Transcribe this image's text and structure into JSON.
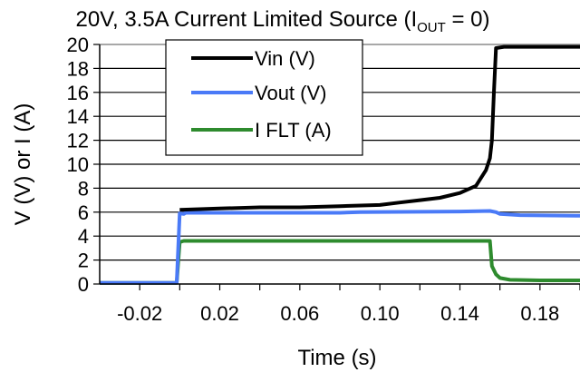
{
  "chart_data": {
    "type": "line",
    "title_parts": {
      "main": "20V, 3.5A Current Limited Source (I",
      "sub": "OUT",
      "tail": " = 0)"
    },
    "xlabel": "Time (s)",
    "ylabel": "V (V) or I (A)",
    "xlim": [
      -0.04,
      0.2
    ],
    "ylim": [
      0,
      20
    ],
    "x_ticks": [
      -0.02,
      0.02,
      0.06,
      0.1,
      0.14,
      0.18
    ],
    "x_tick_labels": [
      "-0.02",
      "0.02",
      "0.06",
      "0.10",
      "0.14",
      "0.18"
    ],
    "y_ticks": [
      0,
      2,
      4,
      6,
      8,
      10,
      12,
      14,
      16,
      18,
      20
    ],
    "y_tick_labels": [
      "0",
      "2",
      "4",
      "6",
      "8",
      "10",
      "12",
      "14",
      "16",
      "18",
      "20"
    ],
    "grid": "horizontal",
    "legend_position": "top-left",
    "series": [
      {
        "name": "Vin (V)",
        "color": "#000000",
        "points": [
          [
            0.0,
            6.2
          ],
          [
            0.02,
            6.3
          ],
          [
            0.04,
            6.4
          ],
          [
            0.06,
            6.4
          ],
          [
            0.08,
            6.5
          ],
          [
            0.1,
            6.6
          ],
          [
            0.11,
            6.8
          ],
          [
            0.12,
            7.0
          ],
          [
            0.13,
            7.2
          ],
          [
            0.14,
            7.6
          ],
          [
            0.148,
            8.2
          ],
          [
            0.153,
            9.5
          ],
          [
            0.155,
            10.5
          ],
          [
            0.156,
            12.0
          ],
          [
            0.157,
            16.0
          ],
          [
            0.158,
            19.7
          ],
          [
            0.162,
            19.8
          ],
          [
            0.2,
            19.8
          ]
        ]
      },
      {
        "name": "Vout (V)",
        "color": "#4a7af7",
        "points": [
          [
            -0.04,
            0.1
          ],
          [
            -0.0015,
            0.1
          ],
          [
            0.0,
            5.9
          ],
          [
            0.002,
            5.85
          ],
          [
            0.003,
            5.95
          ],
          [
            0.08,
            5.95
          ],
          [
            0.09,
            6.0
          ],
          [
            0.14,
            6.05
          ],
          [
            0.155,
            6.1
          ],
          [
            0.158,
            6.0
          ],
          [
            0.16,
            5.85
          ],
          [
            0.17,
            5.75
          ],
          [
            0.2,
            5.7
          ]
        ]
      },
      {
        "name": "I FLT (A)",
        "color": "#2e8b2e",
        "points": [
          [
            -0.04,
            0.1
          ],
          [
            -0.0015,
            0.1
          ],
          [
            0.0,
            3.5
          ],
          [
            0.002,
            3.6
          ],
          [
            0.154,
            3.6
          ],
          [
            0.155,
            3.6
          ],
          [
            0.156,
            1.5
          ],
          [
            0.158,
            0.8
          ],
          [
            0.16,
            0.5
          ],
          [
            0.165,
            0.35
          ],
          [
            0.18,
            0.3
          ],
          [
            0.2,
            0.3
          ]
        ]
      }
    ]
  }
}
